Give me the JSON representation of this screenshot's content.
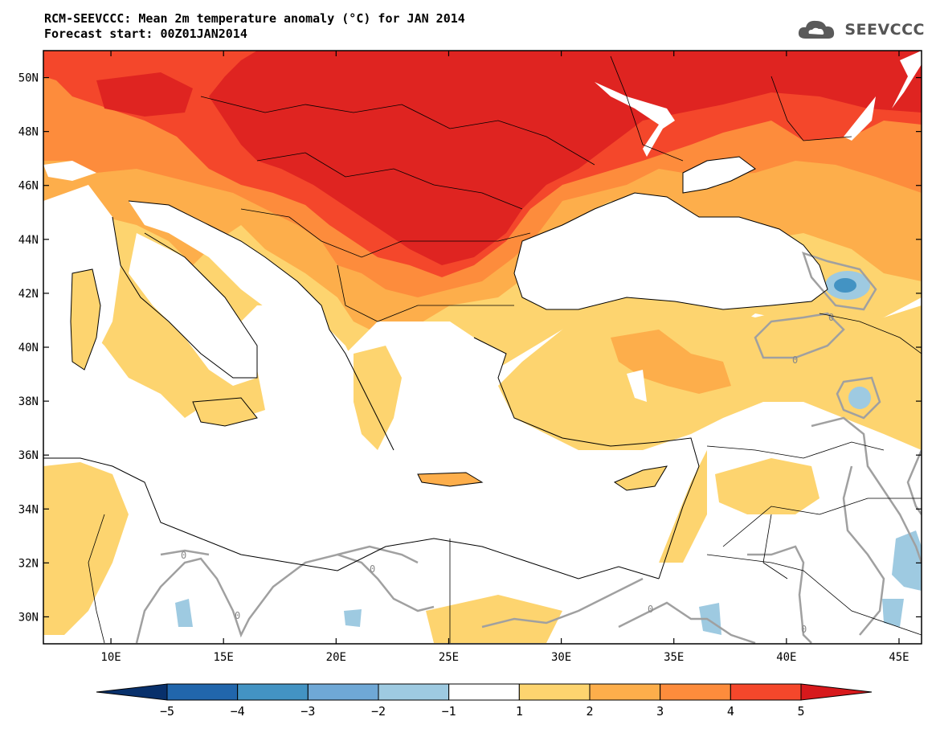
{
  "header": {
    "title_line1": "RCM-SEEVCCC: Mean 2m temperature anomaly (°C) for JAN 2014",
    "title_line2": "Forecast start: 00Z01JAN2014",
    "logo_text": "SEEVCCC"
  },
  "map": {
    "lon_range": [
      7,
      46
    ],
    "lat_range": [
      29,
      51
    ],
    "lat_labels": [
      {
        "value": 50,
        "label": "50N"
      },
      {
        "value": 48,
        "label": "48N"
      },
      {
        "value": 46,
        "label": "46N"
      },
      {
        "value": 44,
        "label": "44N"
      },
      {
        "value": 42,
        "label": "42N"
      },
      {
        "value": 40,
        "label": "40N"
      },
      {
        "value": 38,
        "label": "38N"
      },
      {
        "value": 36,
        "label": "36N"
      },
      {
        "value": 34,
        "label": "34N"
      },
      {
        "value": 32,
        "label": "32N"
      },
      {
        "value": 30,
        "label": "30N"
      }
    ],
    "lon_labels": [
      {
        "value": 10,
        "label": "10E"
      },
      {
        "value": 15,
        "label": "15E"
      },
      {
        "value": 20,
        "label": "20E"
      },
      {
        "value": 25,
        "label": "25E"
      },
      {
        "value": 30,
        "label": "30E"
      },
      {
        "value": 35,
        "label": "35E"
      },
      {
        "value": 40,
        "label": "40E"
      },
      {
        "value": 45,
        "label": "45E"
      }
    ],
    "contour_label": "0"
  },
  "colorbar": {
    "labels": [
      "−5",
      "−4",
      "−3",
      "−2",
      "−1",
      "1",
      "2",
      "3",
      "4",
      "5"
    ],
    "colors": [
      "#08306b",
      "#2166ac",
      "#4393c3",
      "#6fa8d6",
      "#9ecae1",
      "#ffffff",
      "#fdd46f",
      "#fdae4b",
      "#fd8c3c",
      "#f4472b",
      "#d7191c"
    ]
  }
}
